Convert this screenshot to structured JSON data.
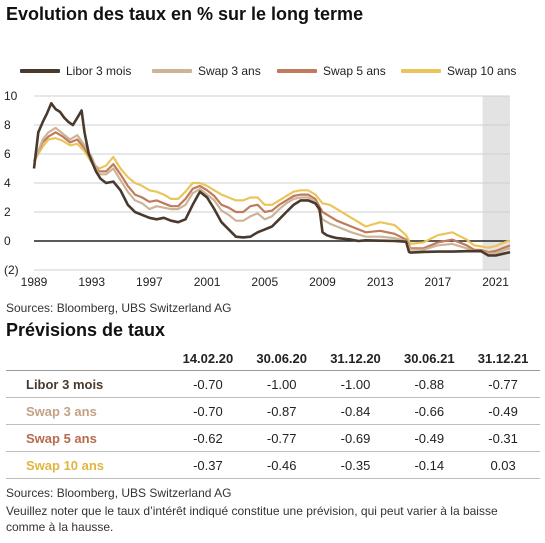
{
  "chart_title": "Evolution des taux en % sur le long terme",
  "colors": {
    "libor": "#4a3a2e",
    "swap3": "#cdb497",
    "swap5": "#c07a5c",
    "swap10": "#e9c55a",
    "forecast_band": "#e3e3e3",
    "grid": "#cfcfcf"
  },
  "chart_data": {
    "type": "line",
    "title": "Evolution des taux en % sur le long terme",
    "xlim": [
      1989,
      2022
    ],
    "ylim": [
      -2,
      10
    ],
    "x_ticks": [
      1989,
      1993,
      1997,
      2001,
      2005,
      2009,
      2013,
      2017,
      2021
    ],
    "x_tick_labels": [
      "1989",
      "1993",
      "1997",
      "2001",
      "2005",
      "2009",
      "2013",
      "2017",
      "2021"
    ],
    "y_ticks": [
      -2,
      0,
      2,
      4,
      6,
      8,
      10
    ],
    "y_tick_labels": [
      "(2)",
      "0",
      "2",
      "4",
      "6",
      "8",
      "10"
    ],
    "grid": "horizontal",
    "legend_position": "top",
    "forecast_shading": [
      2020.1,
      2022
    ],
    "series": [
      {
        "name": "Libor 3 mois",
        "x": [
          1989,
          1989.3,
          1989.6,
          1989.9,
          1990.2,
          1990.5,
          1990.8,
          1991.1,
          1991.4,
          1991.7,
          1992.0,
          1992.3,
          1992.5,
          1992.8,
          1993.0,
          1993.3,
          1993.6,
          1994.0,
          1994.5,
          1995.0,
          1995.5,
          1996.0,
          1996.5,
          1997.0,
          1997.5,
          1998.0,
          1998.5,
          1999.0,
          1999.5,
          2000.0,
          2000.5,
          2001.0,
          2001.5,
          2002.0,
          2002.5,
          2003.0,
          2003.5,
          2004.0,
          2004.5,
          2005.0,
          2005.5,
          2006.0,
          2006.5,
          2007.0,
          2007.5,
          2008.0,
          2008.5,
          2008.8,
          2009.0,
          2009.3,
          2009.6,
          2010.0,
          2011.0,
          2011.5,
          2012.0,
          2013.0,
          2014.0,
          2014.8,
          2015.0,
          2015.1,
          2016.0,
          2017.0,
          2018.0,
          2019.0,
          2019.5,
          2020.0,
          2020.5,
          2021.0,
          2021.5,
          2022.0
        ],
        "y": [
          5.0,
          7.5,
          8.2,
          8.8,
          9.5,
          9.1,
          8.9,
          8.5,
          8.2,
          8.0,
          8.5,
          9.0,
          7.5,
          6.0,
          5.5,
          4.8,
          4.3,
          4.0,
          4.1,
          3.5,
          2.5,
          2.0,
          1.8,
          1.6,
          1.5,
          1.6,
          1.4,
          1.3,
          1.5,
          2.5,
          3.4,
          3.0,
          2.2,
          1.3,
          0.8,
          0.3,
          0.25,
          0.3,
          0.6,
          0.8,
          1.0,
          1.5,
          2.0,
          2.5,
          2.8,
          2.8,
          2.6,
          2.2,
          0.6,
          0.4,
          0.3,
          0.2,
          0.1,
          0.0,
          0.05,
          0.02,
          0.0,
          -0.05,
          -0.75,
          -0.8,
          -0.75,
          -0.73,
          -0.73,
          -0.7,
          -0.7,
          -0.7,
          -1.0,
          -1.0,
          -0.88,
          -0.77
        ]
      },
      {
        "name": "Swap 3 ans",
        "x": [
          1989,
          1989.3,
          1989.6,
          1990.0,
          1990.5,
          1991.0,
          1991.5,
          1992.0,
          1992.5,
          1993.0,
          1993.5,
          1994.0,
          1994.5,
          1995.0,
          1995.5,
          1996.0,
          1996.5,
          1997.0,
          1997.5,
          1998.0,
          1998.5,
          1999.0,
          1999.5,
          2000.0,
          2000.5,
          2001.0,
          2001.5,
          2002.0,
          2002.5,
          2003.0,
          2003.5,
          2004.0,
          2004.5,
          2005.0,
          2005.5,
          2006.0,
          2006.5,
          2007.0,
          2007.5,
          2008.0,
          2008.5,
          2009.0,
          2009.5,
          2010.0,
          2011.0,
          2012.0,
          2013.0,
          2014.0,
          2014.8,
          2015.1,
          2016.0,
          2017.0,
          2018.0,
          2019.0,
          2019.5,
          2020.0,
          2020.5,
          2021.0,
          2021.5,
          2022.0
        ],
        "y": [
          5.5,
          6.2,
          7.0,
          7.5,
          7.8,
          7.4,
          7.0,
          7.3,
          6.6,
          5.8,
          4.6,
          4.6,
          5.0,
          4.2,
          3.4,
          2.8,
          2.6,
          2.2,
          2.4,
          2.3,
          2.2,
          2.2,
          2.5,
          3.3,
          3.6,
          3.2,
          2.8,
          2.1,
          1.8,
          1.4,
          1.4,
          1.7,
          1.9,
          1.5,
          1.7,
          2.2,
          2.6,
          2.9,
          3.0,
          3.0,
          2.7,
          1.5,
          1.2,
          1.0,
          0.6,
          0.3,
          0.3,
          0.2,
          0.0,
          -0.6,
          -0.6,
          -0.3,
          -0.2,
          -0.5,
          -0.7,
          -0.7,
          -0.87,
          -0.84,
          -0.66,
          -0.49
        ]
      },
      {
        "name": "Swap 5 ans",
        "x": [
          1989,
          1989.3,
          1989.6,
          1990.0,
          1990.5,
          1991.0,
          1991.5,
          1992.0,
          1992.5,
          1993.0,
          1993.5,
          1994.0,
          1994.5,
          1995.0,
          1995.5,
          1996.0,
          1996.5,
          1997.0,
          1997.5,
          1998.0,
          1998.5,
          1999.0,
          1999.5,
          2000.0,
          2000.5,
          2001.0,
          2001.5,
          2002.0,
          2002.5,
          2003.0,
          2003.5,
          2004.0,
          2004.5,
          2005.0,
          2005.5,
          2006.0,
          2006.5,
          2007.0,
          2007.5,
          2008.0,
          2008.5,
          2009.0,
          2009.5,
          2010.0,
          2011.0,
          2012.0,
          2013.0,
          2014.0,
          2014.8,
          2015.1,
          2016.0,
          2017.0,
          2018.0,
          2019.0,
          2019.5,
          2020.0,
          2020.5,
          2021.0,
          2021.5,
          2022.0
        ],
        "y": [
          5.5,
          6.2,
          6.8,
          7.2,
          7.5,
          7.2,
          6.8,
          7.0,
          6.4,
          5.6,
          4.8,
          4.8,
          5.3,
          4.6,
          3.8,
          3.2,
          3.0,
          2.7,
          2.8,
          2.6,
          2.4,
          2.4,
          2.9,
          3.6,
          3.8,
          3.5,
          3.1,
          2.5,
          2.3,
          2.0,
          2.0,
          2.4,
          2.5,
          2.0,
          2.1,
          2.5,
          2.8,
          3.1,
          3.2,
          3.2,
          2.9,
          2.0,
          1.7,
          1.4,
          1.0,
          0.6,
          0.7,
          0.5,
          0.1,
          -0.5,
          -0.5,
          -0.1,
          0.1,
          -0.3,
          -0.6,
          -0.62,
          -0.77,
          -0.69,
          -0.49,
          -0.31
        ]
      },
      {
        "name": "Swap 10 ans",
        "x": [
          1989,
          1989.3,
          1989.6,
          1990.0,
          1990.5,
          1991.0,
          1991.5,
          1992.0,
          1992.5,
          1993.0,
          1993.5,
          1994.0,
          1994.5,
          1995.0,
          1995.5,
          1996.0,
          1996.5,
          1997.0,
          1997.5,
          1998.0,
          1998.5,
          1999.0,
          1999.5,
          2000.0,
          2000.5,
          2001.0,
          2001.5,
          2002.0,
          2002.5,
          2003.0,
          2003.5,
          2004.0,
          2004.5,
          2005.0,
          2005.5,
          2006.0,
          2006.5,
          2007.0,
          2007.5,
          2008.0,
          2008.5,
          2009.0,
          2009.5,
          2010.0,
          2011.0,
          2012.0,
          2013.0,
          2014.0,
          2014.8,
          2015.1,
          2016.0,
          2017.0,
          2018.0,
          2019.0,
          2019.5,
          2020.0,
          2020.5,
          2021.0,
          2021.5,
          2022.0
        ],
        "y": [
          5.5,
          6.0,
          6.5,
          7.0,
          7.1,
          6.9,
          6.6,
          6.7,
          6.2,
          5.4,
          5.0,
          5.2,
          5.8,
          5.0,
          4.4,
          4.0,
          3.8,
          3.5,
          3.4,
          3.2,
          2.9,
          2.9,
          3.4,
          4.0,
          4.0,
          3.8,
          3.5,
          3.2,
          3.0,
          2.8,
          2.8,
          3.0,
          3.0,
          2.5,
          2.5,
          2.8,
          3.1,
          3.4,
          3.5,
          3.5,
          3.2,
          2.6,
          2.5,
          2.2,
          1.6,
          1.0,
          1.3,
          1.1,
          0.4,
          -0.2,
          -0.1,
          0.4,
          0.6,
          0.1,
          -0.3,
          -0.37,
          -0.46,
          -0.35,
          -0.14,
          0.03
        ]
      }
    ]
  },
  "sources_chart": "Sources: Bloomberg, UBS Switzerland AG",
  "forecast": {
    "title": "Prévisions de taux",
    "dates": [
      "14.02.20",
      "30.06.20",
      "31.12.20",
      "30.06.21",
      "31.12.21"
    ],
    "rows": [
      {
        "label": "Libor 3 mois",
        "color": "#4a3a2e",
        "values": [
          "-0.70",
          "-1.00",
          "-1.00",
          "-0.88",
          "-0.77"
        ]
      },
      {
        "label": "Swap 3 ans",
        "color": "#c2a282",
        "values": [
          "-0.70",
          "-0.87",
          "-0.84",
          "-0.66",
          "-0.49"
        ]
      },
      {
        "label": "Swap 5 ans",
        "color": "#b86a4c",
        "values": [
          "-0.62",
          "-0.77",
          "-0.69",
          "-0.49",
          "-0.31"
        ]
      },
      {
        "label": "Swap 10 ans",
        "color": "#e0b640",
        "values": [
          "-0.37",
          "-0.46",
          "-0.35",
          "-0.14",
          "0.03"
        ]
      }
    ]
  },
  "sources_table": "Sources: Bloomberg, UBS Switzerland AG",
  "note": "Veuillez noter que le taux d’intérêt indiqué constitue une prévision, qui peut varier à la baisse comme à la hausse."
}
